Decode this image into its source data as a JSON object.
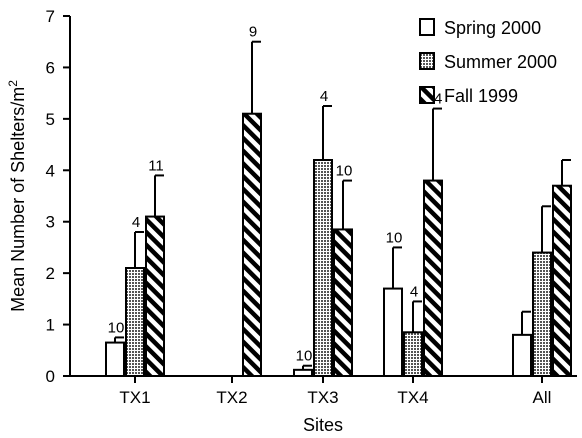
{
  "chart_data": {
    "type": "bar",
    "xlabel": "Sites",
    "ylabel": "Mean Number of Shelters/m",
    "ylabel_superscript": "2",
    "ylim": [
      0,
      7
    ],
    "yticks": [
      0,
      1,
      2,
      3,
      4,
      5,
      6,
      7
    ],
    "categories": [
      "TX1",
      "TX2",
      "TX3",
      "TX4",
      "All"
    ],
    "legend_position": "top-right",
    "series": [
      {
        "name": "Spring 2000",
        "fill": "white",
        "values": [
          0.65,
          null,
          0.12,
          1.7,
          0.8
        ],
        "errors": [
          0.1,
          null,
          0.08,
          0.8,
          0.45
        ],
        "n": [
          "10",
          "",
          "10",
          "10",
          ""
        ]
      },
      {
        "name": "Summer 2000",
        "fill": "dotted",
        "values": [
          2.1,
          null,
          4.2,
          0.85,
          2.4
        ],
        "errors": [
          0.7,
          null,
          1.05,
          0.6,
          0.9
        ],
        "n": [
          "4",
          "",
          "4",
          "4",
          ""
        ]
      },
      {
        "name": "Fall 1999",
        "fill": "hatched",
        "values": [
          3.1,
          5.1,
          2.85,
          3.8,
          3.7
        ],
        "errors": [
          0.8,
          1.4,
          0.95,
          1.4,
          0.5
        ],
        "n": [
          "11",
          "9",
          "10",
          "14",
          ""
        ]
      }
    ]
  }
}
